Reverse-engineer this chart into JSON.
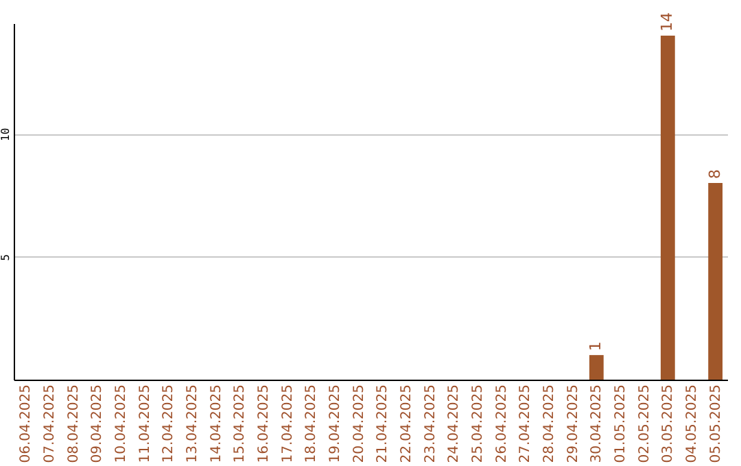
{
  "chart_data": {
    "type": "bar",
    "categories": [
      "06.04.2025",
      "07.04.2025",
      "08.04.2025",
      "09.04.2025",
      "10.04.2025",
      "11.04.2025",
      "12.04.2025",
      "13.04.2025",
      "14.04.2025",
      "15.04.2025",
      "16.04.2025",
      "17.04.2025",
      "18.04.2025",
      "19.04.2025",
      "20.04.2025",
      "21.04.2025",
      "22.04.2025",
      "23.04.2025",
      "24.04.2025",
      "25.04.2025",
      "26.04.2025",
      "27.04.2025",
      "28.04.2025",
      "29.04.2025",
      "30.04.2025",
      "01.05.2025",
      "02.05.2025",
      "03.05.2025",
      "04.05.2025",
      "05.05.2025"
    ],
    "values": [
      0,
      0,
      0,
      0,
      0,
      0,
      0,
      0,
      0,
      0,
      0,
      0,
      0,
      0,
      0,
      0,
      0,
      0,
      0,
      0,
      0,
      0,
      0,
      0,
      1,
      0,
      0,
      14,
      0,
      8
    ],
    "value_labels": [
      null,
      null,
      null,
      null,
      null,
      null,
      null,
      null,
      null,
      null,
      null,
      null,
      null,
      null,
      null,
      null,
      null,
      null,
      null,
      null,
      null,
      null,
      null,
      null,
      "1",
      null,
      null,
      "14",
      null,
      "8"
    ],
    "color": "#a0572a",
    "ylim": [
      0,
      14.5
    ],
    "yticks": [
      5,
      10
    ],
    "grid": "y"
  }
}
